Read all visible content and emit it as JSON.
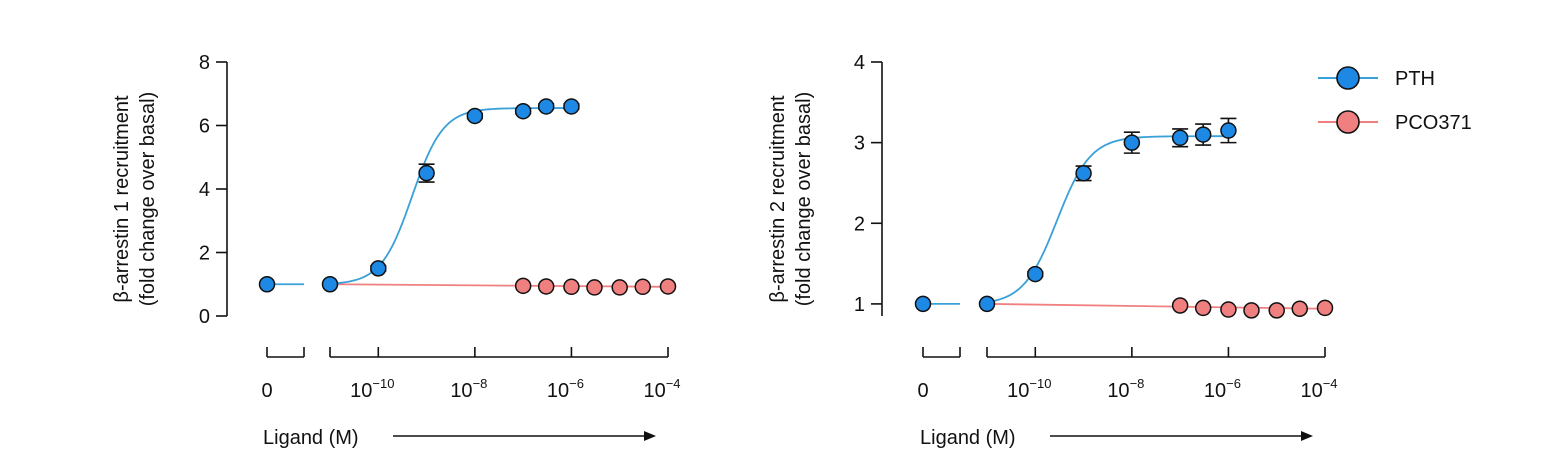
{
  "x_axis": {
    "zero_label": "0",
    "ticks": [
      {
        "base": "10",
        "exp": "−10"
      },
      {
        "base": "10",
        "exp": "−8"
      },
      {
        "base": "10",
        "exp": "−6"
      },
      {
        "base": "10",
        "exp": "−4"
      }
    ],
    "label": "Ligand (M)"
  },
  "legend": [
    {
      "name": "PTH",
      "color": "#1e88e5",
      "line": "#3aa0d8"
    },
    {
      "name": "PCO371",
      "color": "#f08080",
      "line": "#f08080"
    }
  ],
  "chart_data": [
    {
      "type": "scatter",
      "ylabel": [
        "β-arrestin 1 recruitment",
        "(fold change over basal)"
      ],
      "ylim": [
        0,
        8
      ],
      "yticks": [
        0,
        2,
        4,
        6,
        8
      ],
      "x_scale": "log",
      "xlim": [
        1e-11,
        0.0001
      ],
      "series": [
        {
          "name": "PTH",
          "zero_value": 1.0,
          "x": [
            1e-11,
            1e-10,
            1e-09,
            1e-08,
            1e-07,
            3e-07,
            1e-06
          ],
          "y": [
            1.0,
            1.5,
            4.5,
            6.3,
            6.45,
            6.6,
            6.6
          ],
          "err": [
            0,
            0.08,
            0.28,
            0.08,
            0.08,
            0.08,
            0.08
          ],
          "fit": {
            "bottom": 0.99,
            "top": 6.55,
            "log_ec50": -9.3,
            "hill": 1.35
          }
        },
        {
          "name": "PCO371",
          "x": [
            1e-07,
            3e-07,
            1e-06,
            3e-06,
            1e-05,
            3e-05,
            0.0001
          ],
          "y": [
            0.95,
            0.93,
            0.92,
            0.9,
            0.9,
            0.92,
            0.93
          ],
          "err": [
            0,
            0,
            0,
            0,
            0,
            0,
            0
          ],
          "fit_line": {
            "x_from": 1e-11,
            "x_to": 0.0001,
            "y_from": 1.0,
            "y_to": 0.92
          }
        }
      ]
    },
    {
      "type": "scatter",
      "ylabel": [
        "β-arrestin 2 recruitment",
        "(fold change over basal)"
      ],
      "ylim": [
        0.85,
        4
      ],
      "yticks": [
        1,
        2,
        3,
        4
      ],
      "x_scale": "log",
      "xlim": [
        1e-11,
        0.0001
      ],
      "series": [
        {
          "name": "PTH",
          "zero_value": 1.0,
          "x": [
            1e-11,
            1e-10,
            1e-09,
            1e-08,
            1e-07,
            3e-07,
            1e-06
          ],
          "y": [
            1.0,
            1.37,
            2.62,
            3.0,
            3.06,
            3.1,
            3.15
          ],
          "err": [
            0,
            0.03,
            0.09,
            0.13,
            0.11,
            0.13,
            0.15
          ],
          "fit": {
            "bottom": 0.99,
            "top": 3.08,
            "log_ec50": -9.55,
            "hill": 1.25
          }
        },
        {
          "name": "PCO371",
          "x": [
            1e-07,
            3e-07,
            1e-06,
            3e-06,
            1e-05,
            3e-05,
            0.0001
          ],
          "y": [
            0.98,
            0.95,
            0.93,
            0.92,
            0.92,
            0.94,
            0.95
          ],
          "err": [
            0,
            0,
            0,
            0,
            0,
            0,
            0
          ],
          "fit_line": {
            "x_from": 1e-11,
            "x_to": 0.0001,
            "y_from": 1.0,
            "y_to": 0.94
          }
        }
      ]
    }
  ]
}
